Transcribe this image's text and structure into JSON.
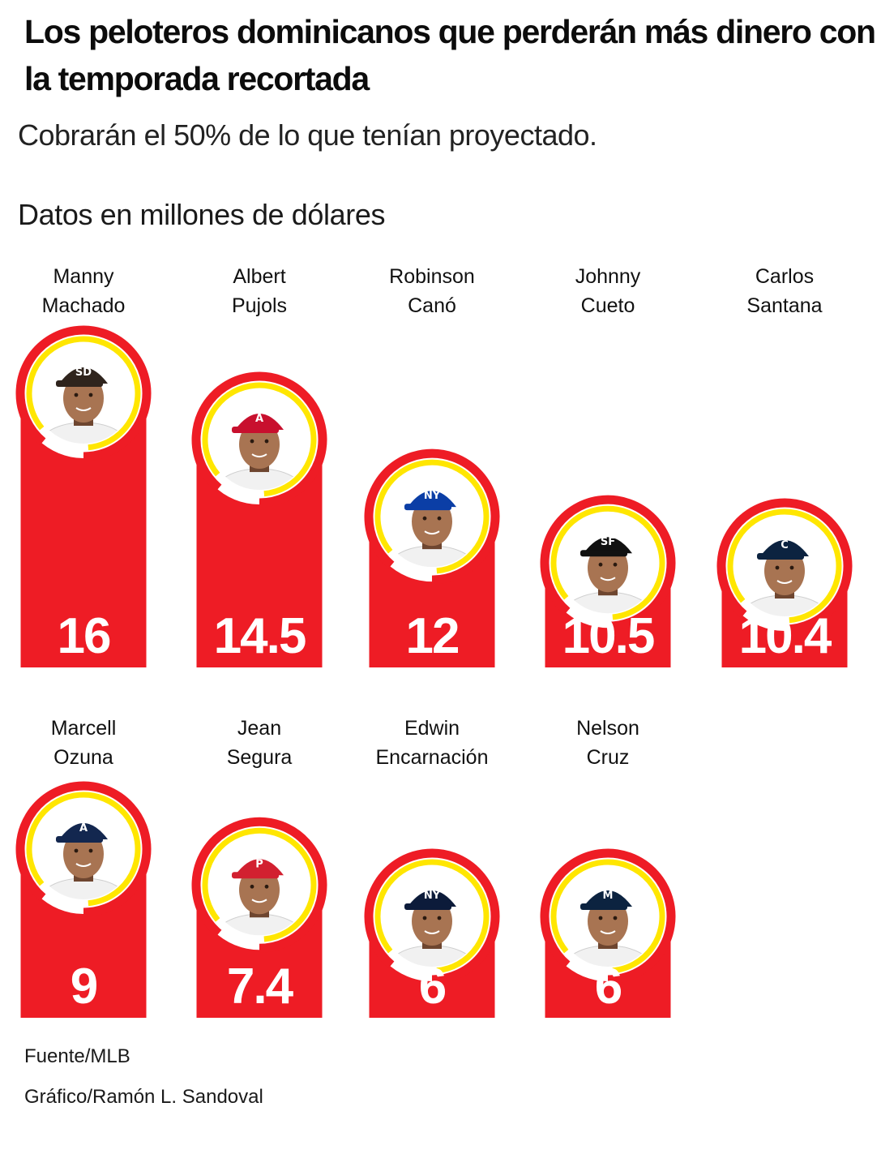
{
  "title": "Los peloteros dominicanos que perderán más dinero con la temporada recortada",
  "subtitle": "Cobrarán el 50% de lo que tenían proyectado.",
  "footer": {
    "source": "Fuente/MLB",
    "credit": "Gráfico/Ramón L. Sandoval"
  },
  "colors": {
    "bar": "#ee1c25",
    "ring_outer": "#ee1c25",
    "ring_inner": "#ffe600",
    "value_text": "#ffffff"
  },
  "chart_data": {
    "type": "bar",
    "title": "Los peloteros dominicanos que perderán más dinero con la temporada recortada",
    "subtitle": "Cobrarán el 50% de lo que tenían proyectado.",
    "ylabel": "Datos en millones de dólares",
    "categories": [
      "Manny Machado",
      "Albert Pujols",
      "Robinson Canó",
      "Johnny Cueto",
      "Carlos Santana",
      "Marcell Ozuna",
      "Jean Segura",
      "Edwin Encarnación",
      "Nelson Cruz"
    ],
    "values": [
      16,
      14.5,
      12,
      10.5,
      10.4,
      9,
      7.4,
      6,
      6
    ],
    "value_labels": [
      "16",
      "14.5",
      "12",
      "10.5",
      "10.4",
      "9",
      "7.4",
      "6",
      "6"
    ],
    "name_lines": [
      [
        "Manny",
        "Machado"
      ],
      [
        "Albert",
        "Pujols"
      ],
      [
        "Robinson",
        "Canó"
      ],
      [
        "Johnny",
        "Cueto"
      ],
      [
        "Carlos",
        "Santana"
      ],
      [
        "Marcell",
        "Ozuna"
      ],
      [
        "Jean",
        "Segura"
      ],
      [
        "Edwin",
        "Encarnación"
      ],
      [
        "Nelson",
        "Cruz"
      ]
    ],
    "cap_colors": [
      "#2f241d",
      "#c8102e",
      "#0b3ea6",
      "#111111",
      "#0c2340",
      "#13274f",
      "#d22030",
      "#0c1b3a",
      "#0c2340"
    ],
    "cap_badges": [
      "SD",
      "A",
      "NY",
      "SF",
      "C",
      "A",
      "P",
      "NY",
      "M"
    ],
    "layout_rows": "2 rows: first 5 players, then 4 players"
  }
}
